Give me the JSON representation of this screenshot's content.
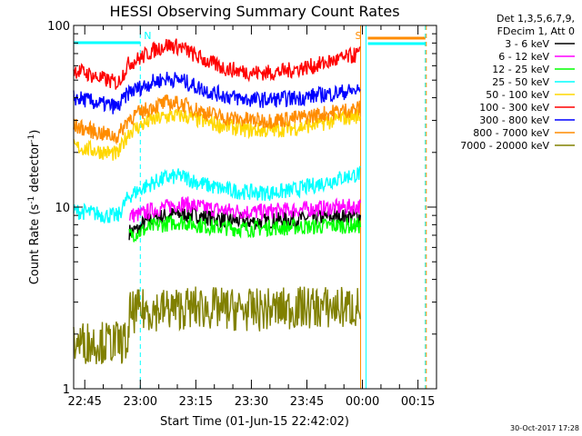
{
  "chart_data": {
    "type": "line",
    "title": "HESSI Observing Summary Count Rates",
    "xlabel": "Start Time (01-Jun-15 22:42:02)",
    "ylabel": "Count Rate (s",
    "ylabel_sup": "-1",
    "ylabel_tail": " detector",
    "ylabel_sup2": "-1",
    "ylabel_close": ")",
    "y_scale": "log",
    "ylim": [
      1,
      100
    ],
    "y_tick_labels": [
      "1",
      "10",
      "100"
    ],
    "xlim_minutes": [
      -3,
      95
    ],
    "x_ticks": [
      {
        "m": 0,
        "label": "22:45"
      },
      {
        "m": 15,
        "label": "23:00"
      },
      {
        "m": 30,
        "label": "23:15"
      },
      {
        "m": 45,
        "label": "23:30"
      },
      {
        "m": 60,
        "label": "23:45"
      },
      {
        "m": 75,
        "label": "00:00"
      },
      {
        "m": 90,
        "label": "00:15"
      }
    ],
    "legend_header": [
      "Det 1,3,5,6,7,9,",
      "FDecim 1, Att 0"
    ],
    "series": [
      {
        "name": "3 - 6 keV",
        "color": "#000000",
        "x": [
          12,
          15,
          15.5,
          18,
          22,
          26,
          30,
          34,
          38,
          42,
          46,
          50,
          54,
          58,
          62,
          66,
          70,
          74.5
        ],
        "y": [
          7.3,
          7.6,
          8.0,
          8.6,
          9.0,
          9.2,
          9.0,
          8.7,
          8.5,
          8.4,
          8.3,
          8.4,
          8.5,
          8.6,
          8.7,
          8.8,
          8.9,
          8.9
        ]
      },
      {
        "name": "6 - 12 keV",
        "color": "#ff00ff",
        "x": [
          12,
          15,
          18,
          22,
          26,
          30,
          34,
          38,
          42,
          46,
          50,
          54,
          58,
          62,
          66,
          70,
          74.5
        ],
        "y": [
          9.0,
          9.1,
          9.6,
          10.0,
          10.5,
          10.1,
          9.8,
          9.6,
          9.5,
          9.4,
          9.5,
          9.6,
          9.7,
          9.8,
          9.9,
          10.0,
          10.1
        ]
      },
      {
        "name": "12 - 25 keV",
        "color": "#00ff00",
        "x": [
          12,
          15,
          18,
          22,
          26,
          30,
          34,
          38,
          42,
          46,
          50,
          54,
          58,
          62,
          66,
          70,
          74.5
        ],
        "y": [
          7.0,
          7.3,
          7.8,
          8.1,
          8.3,
          8.0,
          7.8,
          7.7,
          7.6,
          7.6,
          7.7,
          7.7,
          7.8,
          7.8,
          7.9,
          7.9,
          7.9
        ]
      },
      {
        "name": "25 - 50 keV",
        "color": "#00ffff",
        "x": [
          -3,
          0,
          3,
          6,
          9,
          12,
          15,
          18,
          22,
          26,
          30,
          34,
          38,
          42,
          46,
          50,
          54,
          58,
          62,
          66,
          70,
          74.5
        ],
        "y": [
          9.5,
          9.4,
          9.2,
          9.0,
          8.9,
          11.5,
          12.5,
          13.5,
          14.5,
          14.8,
          13.8,
          13.0,
          12.5,
          12.2,
          12.0,
          12.0,
          12.2,
          12.6,
          13.2,
          13.9,
          14.6,
          15.3
        ]
      },
      {
        "name": "50 - 100 keV",
        "color": "#ffd700",
        "x": [
          -3,
          0,
          3,
          6,
          9,
          12,
          15,
          18,
          22,
          26,
          30,
          34,
          38,
          42,
          46,
          50,
          54,
          58,
          62,
          66,
          70,
          74.5
        ],
        "y": [
          21.5,
          21.0,
          20.5,
          20.0,
          19.5,
          26.0,
          28.0,
          30.0,
          31.5,
          32.0,
          30.5,
          29.0,
          28.0,
          27.0,
          26.5,
          26.5,
          27.0,
          27.5,
          28.5,
          29.5,
          31.0,
          32.0
        ]
      },
      {
        "name": "100 - 300 keV",
        "color": "#ff0000",
        "x": [
          -3,
          0,
          3,
          6,
          9,
          12,
          15,
          18,
          22,
          26,
          30,
          34,
          38,
          42,
          46,
          50,
          54,
          58,
          62,
          66,
          70,
          74.5
        ],
        "y": [
          57,
          55,
          52,
          50,
          48,
          62,
          66,
          72,
          78,
          76,
          68,
          62,
          58,
          56,
          55,
          55,
          56,
          58,
          60,
          63,
          66,
          70
        ]
      },
      {
        "name": "300 - 800 keV",
        "color": "#0000ff",
        "x": [
          -3,
          0,
          3,
          6,
          9,
          12,
          15,
          18,
          22,
          26,
          30,
          34,
          38,
          42,
          46,
          50,
          54,
          58,
          62,
          66,
          70,
          74.5
        ],
        "y": [
          40,
          39,
          37.5,
          36.5,
          35.5,
          43,
          45.5,
          48.5,
          51,
          50,
          46,
          43,
          41,
          39.5,
          39,
          39,
          39.5,
          40,
          41,
          42,
          43,
          44
        ]
      },
      {
        "name": "800 - 7000 keV",
        "color": "#ff8c00",
        "x": [
          -3,
          0,
          3,
          6,
          9,
          12,
          15,
          18,
          22,
          26,
          30,
          34,
          38,
          42,
          46,
          50,
          54,
          58,
          62,
          66,
          70,
          74.5
        ],
        "y": [
          28,
          27,
          26,
          25,
          24.5,
          31,
          33,
          35.5,
          37.5,
          37,
          34.5,
          32.5,
          31,
          30.5,
          30,
          30,
          30.5,
          31,
          32,
          33,
          34,
          35
        ]
      },
      {
        "name": "7000 - 20000 keV",
        "color": "#808000",
        "x": [
          -3,
          12,
          12,
          15,
          30,
          45,
          60,
          74.5
        ],
        "y": [
          1.8,
          1.8,
          2.6,
          2.7,
          2.8,
          2.7,
          2.8,
          2.8
        ]
      }
    ],
    "annotations": [
      {
        "text": "N",
        "color": "#00ffff",
        "m": 15
      },
      {
        "text": "S",
        "color": "#ff8c00",
        "m": 74.5
      }
    ],
    "grid": false,
    "legend": "top-right"
  },
  "footer": {
    "date": "30-Oct-2017 17:28"
  }
}
